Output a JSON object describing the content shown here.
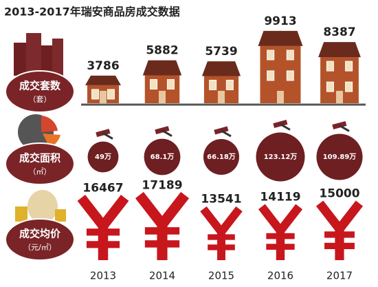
{
  "chart_data": {
    "type": "pictograph",
    "title": "2013-2017年瑞安商品房成交数据",
    "categories": [
      "2013",
      "2014",
      "2015",
      "2016",
      "2017"
    ],
    "series": [
      {
        "name": "成交套数",
        "unit": "（套）",
        "color": "#b4532a",
        "values": [
          3786,
          5882,
          5739,
          9913,
          8387
        ]
      },
      {
        "name": "成交面积",
        "unit": "（㎡）",
        "color": "#6e1f22",
        "values": [
          49,
          68.1,
          66.18,
          123.12,
          109.89
        ],
        "value_labels": [
          "49万",
          "68.1万",
          "66.18万",
          "123.12万",
          "109.89万"
        ]
      },
      {
        "name": "成交均价",
        "unit": "（元/㎡）",
        "color": "#c8161d",
        "values": [
          16467,
          17189,
          13541,
          14119,
          15000
        ]
      }
    ]
  }
}
